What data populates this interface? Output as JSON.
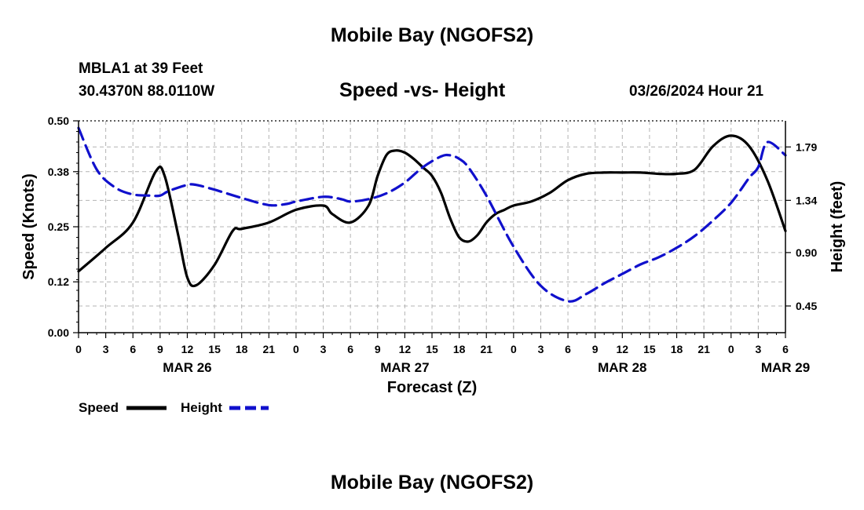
{
  "header": {
    "title_top": "Mobile Bay (NGOFS2)",
    "station_line": "MBLA1 at 39 Feet",
    "coord_line": "30.4370N  88.0110W",
    "subtitle": "Speed -vs- Height",
    "datetime": "03/26/2024 Hour 21",
    "title_bottom": "Mobile Bay (NGOFS2)"
  },
  "legend": {
    "speed_label": "Speed",
    "height_label": "Height"
  },
  "colors": {
    "speed": "#000000",
    "height": "#1010cc",
    "grid": "#b4b4b4"
  },
  "chart_data": {
    "type": "line",
    "title": "Speed -vs- Height",
    "xlabel": "Forecast (Z)",
    "ylabel": "Speed (Knots)",
    "y2label": "Height (feet)",
    "xlim": [
      0,
      78
    ],
    "ylim": [
      0,
      0.5
    ],
    "y2lim": [
      0.225,
      2.01
    ],
    "x_tick_values": [
      0,
      3,
      6,
      9,
      12,
      15,
      18,
      21,
      24,
      27,
      30,
      33,
      36,
      39,
      42,
      45,
      48,
      51,
      54,
      57,
      60,
      63,
      66,
      69,
      72,
      75,
      78
    ],
    "x_tick_labels": [
      "0",
      "3",
      "6",
      "9",
      "12",
      "15",
      "18",
      "21",
      "0",
      "3",
      "6",
      "9",
      "12",
      "15",
      "18",
      "21",
      "0",
      "3",
      "6",
      "9",
      "12",
      "15",
      "18",
      "21",
      "0",
      "3",
      "6"
    ],
    "date_labels": [
      {
        "x": 12,
        "label": "MAR 26"
      },
      {
        "x": 36,
        "label": "MAR 27"
      },
      {
        "x": 60,
        "label": "MAR 28"
      },
      {
        "x": 78,
        "label": "MAR 29"
      }
    ],
    "y_ticks": [
      "0.00",
      "0.12",
      "0.25",
      "0.38",
      "0.50"
    ],
    "y2_ticks": [
      "0.45",
      "0.90",
      "1.34",
      "1.79"
    ],
    "grid": true,
    "legend_position": "bottom-left",
    "series": [
      {
        "name": "Speed",
        "axis": "left",
        "x": [
          0,
          3,
          6,
          8.5,
          9.5,
          11,
          12,
          13,
          15,
          17,
          18,
          21,
          24,
          27,
          28,
          30,
          32,
          33,
          34,
          35,
          36,
          37,
          38,
          39,
          40,
          41,
          42,
          43,
          44,
          45,
          46,
          47,
          48,
          50,
          52,
          54,
          56,
          58,
          60,
          62,
          64,
          66,
          68,
          70,
          72,
          74,
          76,
          78
        ],
        "y": [
          0.145,
          0.2,
          0.26,
          0.38,
          0.37,
          0.23,
          0.13,
          0.112,
          0.16,
          0.24,
          0.245,
          0.26,
          0.29,
          0.3,
          0.28,
          0.26,
          0.3,
          0.37,
          0.42,
          0.43,
          0.425,
          0.41,
          0.39,
          0.37,
          0.33,
          0.27,
          0.225,
          0.215,
          0.23,
          0.26,
          0.28,
          0.29,
          0.3,
          0.31,
          0.33,
          0.36,
          0.375,
          0.378,
          0.378,
          0.378,
          0.375,
          0.375,
          0.385,
          0.44,
          0.465,
          0.44,
          0.36,
          0.24
        ]
      },
      {
        "name": "Height",
        "axis": "right",
        "x": [
          0,
          2,
          4,
          6,
          8,
          9,
          10,
          12,
          13,
          15,
          18,
          21,
          23,
          24,
          27,
          29,
          30,
          32,
          34,
          36,
          38,
          40,
          41,
          42,
          43,
          45,
          48,
          51,
          54,
          56,
          58,
          60,
          62,
          64,
          66,
          68,
          70,
          72,
          74,
          75,
          76,
          78
        ],
        "y": [
          1.95,
          1.6,
          1.45,
          1.39,
          1.38,
          1.38,
          1.42,
          1.47,
          1.47,
          1.43,
          1.36,
          1.3,
          1.31,
          1.33,
          1.37,
          1.35,
          1.33,
          1.35,
          1.4,
          1.49,
          1.62,
          1.71,
          1.72,
          1.69,
          1.62,
          1.38,
          0.95,
          0.62,
          0.49,
          0.55,
          0.64,
          0.72,
          0.8,
          0.86,
          0.94,
          1.04,
          1.17,
          1.32,
          1.53,
          1.62,
          1.83,
          1.72
        ]
      }
    ]
  }
}
